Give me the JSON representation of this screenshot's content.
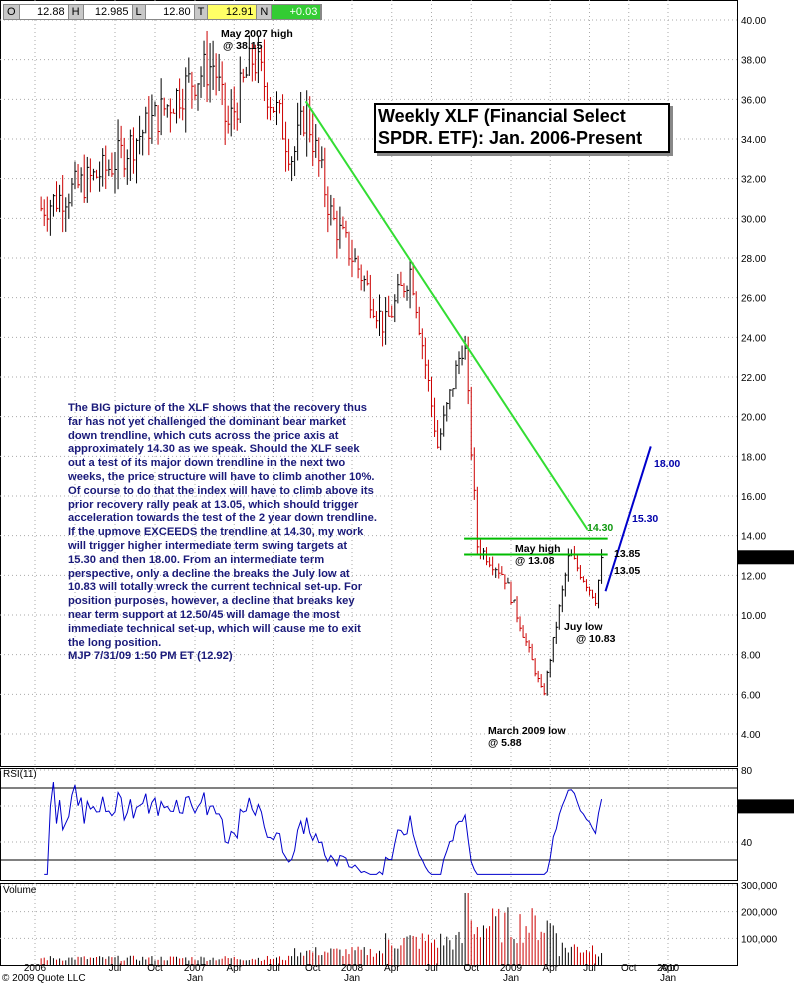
{
  "ohlc": {
    "o_label": "O",
    "o_value": "12.88",
    "h_label": "H",
    "h_value": "12.985",
    "l_label": "L",
    "l_value": "12.80",
    "t_label": "T",
    "t_value": "12.91",
    "n_label": "N",
    "n_value": "+0.03"
  },
  "title_line1": "Weekly XLF (Financial Select",
  "title_line2": "SPDR. ETF): Jan. 2006-Present",
  "commentary": "The BIG picture of the XLF shows that the recovery thus far has not yet challenged the dominant bear market down trendline, which cuts across the price axis at approximately 14.30 as we speak. Should the XLF seek out a test of its major down trendline in the next two weeks, the price structure will have to climb another 10%. Of course to do that the index will have to climb above its prior recovery rally peak at 13.05, which should trigger acceleration towards the test of the 2 year down trendline. If the upmove EXCEEDS the trendline at 14.30, my work will trigger higher intermediate term swing targets at 15.30 and then 18.00.  From an intermediate term perspective, only a decline the breaks the July low at 10.83 will totally wreck the current technical set-up. For position purposes, however, a decline that breaks key near term support at 12.50/45 will damage the most immediate technical set-up, which will cause me to exit the long position.",
  "signature": "MJP  7/31/09  1:50 PM ET  (12.92)",
  "annotations": {
    "may2007_line1": "May 2007 high",
    "may2007_line2": "@ 38.15",
    "mayhigh_line1": "May high",
    "mayhigh_line2": "@ 13.08",
    "julylow_line1": "Juy low",
    "julylow_line2": "@ 10.83",
    "march_line1": "March 2009 low",
    "march_line2": "@ 5.88",
    "t1430": "14.30",
    "t1530": "15.30",
    "t1800": "18.00",
    "r1385": "13.85",
    "r1305": "13.05"
  },
  "colors": {
    "up_bar": "#000000",
    "down_bar": "#cc0000",
    "trendline": "#33dd33",
    "projection": "#0000cc",
    "resistance": "#00bb00",
    "rsi_line": "#0000cc",
    "volume": "#cc0000",
    "grid": "#aaaaaa",
    "last_price_tag": "#000000"
  },
  "chart_data": [
    {
      "type": "line",
      "subtype": "ohlc",
      "title": "Weekly XLF (Financial Select SPDR. ETF): Jan. 2006-Present",
      "ylim": [
        4,
        40
      ],
      "y_ticks": [
        "40.00",
        "38.00",
        "36.00",
        "34.00",
        "32.00",
        "30.00",
        "28.00",
        "26.00",
        "24.00",
        "22.00",
        "20.00",
        "18.00",
        "16.00",
        "14.00",
        "12.00",
        "10.00",
        "8.00",
        "6.00",
        "4.00"
      ],
      "last_price": "12.91",
      "x_labels": [
        "2006",
        "Jul",
        "Oct",
        "2007",
        "Apr",
        "Jul",
        "Oct",
        "2008",
        "Apr",
        "Jul",
        "Oct",
        "2009",
        "Apr",
        "Jul",
        "Oct",
        "2010",
        "Apr"
      ],
      "x_sublabels": [
        "",
        "",
        "",
        "Jan",
        "",
        "",
        "",
        "Jan",
        "",
        "",
        "",
        "Jan",
        "",
        "",
        "",
        "Jan",
        ""
      ],
      "key_points": [
        {
          "date": "2006-01",
          "close": 30.5
        },
        {
          "date": "2006-06",
          "close": 32.5
        },
        {
          "date": "2006-12",
          "close": 36.8
        },
        {
          "date": "2007-02",
          "close": 37.8
        },
        {
          "date": "2007-03",
          "close": 34.5
        },
        {
          "date": "2007-05",
          "close": 38.15
        },
        {
          "date": "2007-07",
          "close": 35.0
        },
        {
          "date": "2007-08",
          "close": 33.0
        },
        {
          "date": "2007-09",
          "close": 35.5
        },
        {
          "date": "2007-11",
          "close": 30.0
        },
        {
          "date": "2008-01",
          "close": 27.5
        },
        {
          "date": "2008-03",
          "close": 24.5
        },
        {
          "date": "2008-05",
          "close": 27.5
        },
        {
          "date": "2008-07",
          "close": 18.5
        },
        {
          "date": "2008-09",
          "close": 24.0
        },
        {
          "date": "2008-10",
          "close": 13.5
        },
        {
          "date": "2008-12",
          "close": 12.0
        },
        {
          "date": "2009-02",
          "close": 8.0
        },
        {
          "date": "2009-03",
          "close": 5.88
        },
        {
          "date": "2009-05",
          "close": 13.08
        },
        {
          "date": "2009-07",
          "close": 10.83
        },
        {
          "date": "2009-07-31",
          "close": 12.91
        }
      ],
      "trendline": {
        "from": {
          "date": "2007-09",
          "price": 35.9
        },
        "to": {
          "date": "2009-07",
          "price": 14.3
        }
      },
      "projection": {
        "from": {
          "date": "2009-07",
          "price": 11.2
        },
        "to": {
          "date": "2009-10",
          "price": 18.5
        }
      },
      "resistance_levels": [
        13.85,
        13.05
      ]
    },
    {
      "type": "line",
      "title": "RSI(11)",
      "ylim": [
        20,
        80
      ],
      "y_ticks": [
        "80",
        "60",
        "40"
      ],
      "levels": [
        70,
        30
      ],
      "last_value": "59.79"
    },
    {
      "type": "bar",
      "title": "Volume",
      "y_ticks": [
        "300,000",
        "200,000",
        "100,000"
      ],
      "ylim": [
        0,
        300000
      ]
    }
  ],
  "footer": "© 2009 Quote LLC"
}
